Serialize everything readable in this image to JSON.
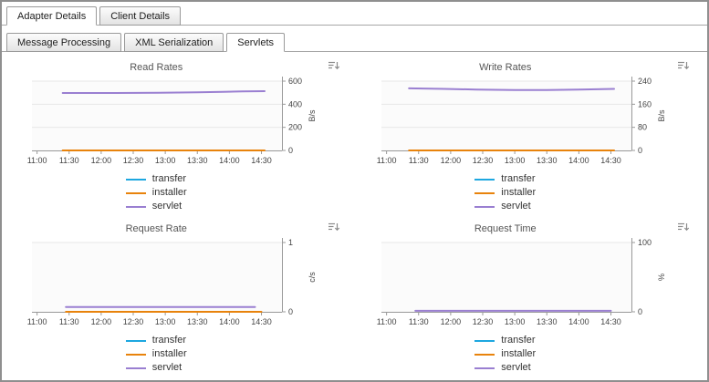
{
  "tabs": {
    "primary": [
      {
        "label": "Adapter Details",
        "active": true
      },
      {
        "label": "Client Details",
        "active": false
      }
    ],
    "secondary": [
      {
        "label": "Message Processing",
        "active": false
      },
      {
        "label": "XML Serialization",
        "active": false
      },
      {
        "label": "Servlets",
        "active": true
      }
    ]
  },
  "icons": {
    "chart_menu": "list-with-down-arrow"
  },
  "colors": {
    "transfer": "#1ea7e0",
    "installer": "#e8830c",
    "servlet": "#9a7fd1",
    "axis": "#999999",
    "grid": "#e7e7e7"
  },
  "chart_data": [
    {
      "type": "line",
      "title": "Read Rates",
      "ylabel": "B/s",
      "ylim": [
        0,
        600
      ],
      "yticks": [
        0,
        200,
        400,
        600
      ],
      "xlim": [
        10.92,
        14.82
      ],
      "xticks": [
        {
          "v": 11.0,
          "label": "11:00"
        },
        {
          "v": 11.5,
          "label": "11:30"
        },
        {
          "v": 12.0,
          "label": "12:00"
        },
        {
          "v": 12.5,
          "label": "12:30"
        },
        {
          "v": 13.0,
          "label": "13:00"
        },
        {
          "v": 13.5,
          "label": "13:30"
        },
        {
          "v": 14.0,
          "label": "14:00"
        },
        {
          "v": 14.5,
          "label": "14:30"
        }
      ],
      "series": [
        {
          "name": "transfer",
          "color": "#1ea7e0",
          "points": []
        },
        {
          "name": "installer",
          "color": "#e8830c",
          "points": [
            [
              11.4,
              0
            ],
            [
              14.55,
              0
            ]
          ]
        },
        {
          "name": "servlet",
          "color": "#9a7fd1",
          "points": [
            [
              11.4,
              497
            ],
            [
              12.2,
              497
            ],
            [
              12.9,
              499
            ],
            [
              13.5,
              503
            ],
            [
              13.9,
              508
            ],
            [
              14.2,
              511
            ],
            [
              14.55,
              513
            ]
          ]
        }
      ]
    },
    {
      "type": "line",
      "title": "Write Rates",
      "ylabel": "B/s",
      "ylim": [
        0,
        240
      ],
      "yticks": [
        0,
        80,
        160,
        240
      ],
      "xlim": [
        10.92,
        14.82
      ],
      "xticks": [
        {
          "v": 11.0,
          "label": "11:00"
        },
        {
          "v": 11.5,
          "label": "11:30"
        },
        {
          "v": 12.0,
          "label": "12:00"
        },
        {
          "v": 12.5,
          "label": "12:30"
        },
        {
          "v": 13.0,
          "label": "13:00"
        },
        {
          "v": 13.5,
          "label": "13:30"
        },
        {
          "v": 14.0,
          "label": "14:00"
        },
        {
          "v": 14.5,
          "label": "14:30"
        }
      ],
      "series": [
        {
          "name": "transfer",
          "color": "#1ea7e0",
          "points": []
        },
        {
          "name": "installer",
          "color": "#e8830c",
          "points": [
            [
              11.35,
              0
            ],
            [
              14.55,
              0
            ]
          ]
        },
        {
          "name": "servlet",
          "color": "#9a7fd1",
          "points": [
            [
              11.35,
              215
            ],
            [
              11.9,
              213
            ],
            [
              12.4,
              211
            ],
            [
              13.0,
              209
            ],
            [
              13.5,
              209
            ],
            [
              14.0,
              211
            ],
            [
              14.55,
              213
            ]
          ]
        }
      ]
    },
    {
      "type": "line",
      "title": "Request Rate",
      "ylabel": "c/s",
      "ylim": [
        0,
        1
      ],
      "yticks": [
        0,
        1
      ],
      "xlim": [
        10.92,
        14.82
      ],
      "xticks": [
        {
          "v": 11.0,
          "label": "11:00"
        },
        {
          "v": 11.5,
          "label": "11:30"
        },
        {
          "v": 12.0,
          "label": "12:00"
        },
        {
          "v": 12.5,
          "label": "12:30"
        },
        {
          "v": 13.0,
          "label": "13:00"
        },
        {
          "v": 13.5,
          "label": "13:30"
        },
        {
          "v": 14.0,
          "label": "14:00"
        },
        {
          "v": 14.5,
          "label": "14:30"
        }
      ],
      "series": [
        {
          "name": "transfer",
          "color": "#1ea7e0",
          "points": []
        },
        {
          "name": "installer",
          "color": "#e8830c",
          "points": [
            [
              11.45,
              0
            ],
            [
              14.5,
              0
            ]
          ]
        },
        {
          "name": "servlet",
          "color": "#9a7fd1",
          "points": [
            [
              11.45,
              0.07
            ],
            [
              14.4,
              0.07
            ]
          ]
        }
      ]
    },
    {
      "type": "line",
      "title": "Request Time",
      "ylabel": "%",
      "ylim": [
        0,
        100
      ],
      "yticks": [
        0,
        100
      ],
      "xlim": [
        10.92,
        14.82
      ],
      "xticks": [
        {
          "v": 11.0,
          "label": "11:00"
        },
        {
          "v": 11.5,
          "label": "11:30"
        },
        {
          "v": 12.0,
          "label": "12:00"
        },
        {
          "v": 12.5,
          "label": "12:30"
        },
        {
          "v": 13.0,
          "label": "13:00"
        },
        {
          "v": 13.5,
          "label": "13:30"
        },
        {
          "v": 14.0,
          "label": "14:00"
        },
        {
          "v": 14.5,
          "label": "14:30"
        }
      ],
      "series": [
        {
          "name": "transfer",
          "color": "#1ea7e0",
          "points": []
        },
        {
          "name": "installer",
          "color": "#e8830c",
          "points": []
        },
        {
          "name": "servlet",
          "color": "#9a7fd1",
          "points": [
            [
              11.45,
              1.5
            ],
            [
              14.5,
              1.5
            ]
          ]
        }
      ]
    }
  ]
}
